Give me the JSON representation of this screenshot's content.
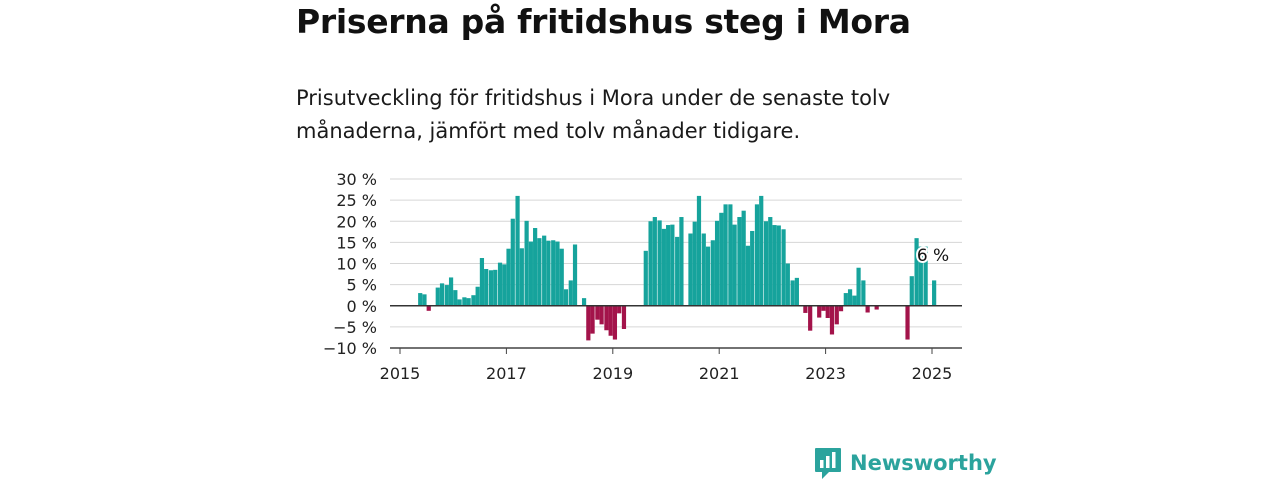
{
  "brand": {
    "name": "Newsworthy",
    "color": "#2ba39d"
  },
  "chart_data": {
    "type": "bar",
    "title": "Priserna på fritidshus steg i Mora",
    "subtitle": "Prisutveckling för fritidshus i Mora under de senaste tolv månaderna, jämfört med tolv månader tidigare.",
    "xlabel": "",
    "ylabel": "",
    "ylim": [
      -10,
      30
    ],
    "xlim": [
      2015.0,
      2025.5
    ],
    "grid": true,
    "y_ticks": [
      "30 %",
      "25 %",
      "20 %",
      "15 %",
      "10 %",
      "5 %",
      "0 %",
      "−5 %",
      "−10 %"
    ],
    "y_tick_values": [
      30,
      25,
      20,
      15,
      10,
      5,
      0,
      -5,
      -10
    ],
    "x_ticks": [
      "2015",
      "2017",
      "2019",
      "2021",
      "2023",
      "2025"
    ],
    "x_tick_values": [
      2015,
      2017,
      2019,
      2021,
      2023,
      2025
    ],
    "colors": {
      "positive": "#16a39c",
      "negative": "#a3134a"
    },
    "annotation": {
      "label": "6 %",
      "x": 2025.0,
      "y": 6
    },
    "series": [
      {
        "x": [
          2015.38,
          2015.46,
          2015.54,
          2015.62,
          2015.71,
          2015.79,
          2015.88,
          2015.96,
          2016.04,
          2016.12,
          2016.21,
          2016.29,
          2016.38,
          2016.46,
          2016.54,
          2016.62,
          2016.71,
          2016.79,
          2016.88,
          2016.96,
          2017.04,
          2017.12,
          2017.21,
          2017.29,
          2017.38,
          2017.46,
          2017.54,
          2017.62,
          2017.71,
          2017.79,
          2017.88,
          2017.96,
          2018.04,
          2018.12,
          2018.21,
          2018.29,
          2018.38,
          2018.46,
          2018.54,
          2018.62,
          2018.71,
          2018.79,
          2018.88,
          2018.96,
          2019.04,
          2019.12,
          2019.21,
          2019.29,
          2019.38,
          2019.46,
          2019.54,
          2019.62,
          2019.71,
          2019.79,
          2019.88,
          2019.96,
          2020.04,
          2020.12,
          2020.21,
          2020.29,
          2020.38,
          2020.46,
          2020.54,
          2020.62,
          2020.71,
          2020.79,
          2020.88,
          2020.96,
          2021.04,
          2021.12,
          2021.21,
          2021.29,
          2021.38,
          2021.46,
          2021.54,
          2021.62,
          2021.71,
          2021.79,
          2021.88,
          2021.96,
          2022.04,
          2022.12,
          2022.21,
          2022.29,
          2022.38,
          2022.46,
          2022.54,
          2022.62,
          2022.71,
          2022.79,
          2022.88,
          2022.96,
          2023.04,
          2023.12,
          2023.21,
          2023.29,
          2023.38,
          2023.46,
          2023.54,
          2023.62,
          2023.71,
          2023.79,
          2023.88,
          2023.96,
          2024.04,
          2024.12,
          2024.21,
          2024.29,
          2024.38,
          2024.46,
          2024.54,
          2024.62,
          2024.71,
          2024.79,
          2024.88,
          2024.96,
          2025.04
        ],
        "values": [
          3,
          2.7,
          -1.2,
          null,
          4.3,
          5.3,
          4.9,
          6.7,
          3.7,
          1.5,
          2,
          1.8,
          2.5,
          4.5,
          11.3,
          8.7,
          8.4,
          8.5,
          10.2,
          9.8,
          13.5,
          20.6,
          26,
          13.6,
          20.1,
          15.2,
          18.4,
          16,
          16.6,
          15.4,
          15.5,
          15.2,
          13.5,
          3.9,
          6,
          14.5,
          null,
          1.8,
          -8.2,
          -6.6,
          -3.3,
          -4.4,
          -5.8,
          -7.1,
          -8,
          -1.8,
          -5.5,
          null,
          null,
          null,
          null,
          13,
          20,
          21,
          20.2,
          18.2,
          19.1,
          19.2,
          16.3,
          21,
          null,
          17.1,
          19.9,
          26,
          17.1,
          14,
          15.5,
          20.1,
          22,
          24,
          24,
          19.2,
          21,
          22.5,
          14.2,
          17.7,
          24,
          26,
          20,
          21,
          19.1,
          19,
          18.1,
          10,
          6,
          6.6,
          null,
          -1.7,
          -5.9,
          null,
          -2.8,
          -1.2,
          -2.9,
          -6.8,
          -4.4,
          -1.3,
          3,
          3.9,
          2.4,
          9,
          6,
          -1.6,
          null,
          -0.9,
          null,
          null,
          null,
          null,
          null,
          null,
          -8,
          7,
          16,
          14,
          14,
          null,
          6
        ]
      }
    ]
  }
}
